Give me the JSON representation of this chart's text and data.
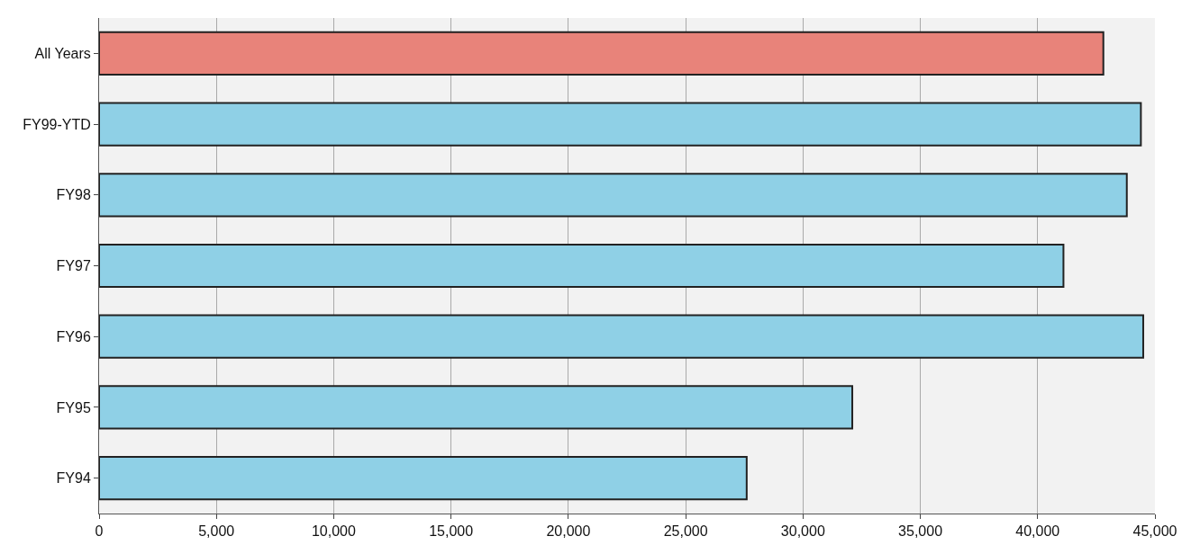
{
  "chart_data": {
    "type": "bar",
    "orientation": "horizontal",
    "categories": [
      "All Years",
      "FY99-YTD",
      "FY98",
      "FY97",
      "FY96",
      "FY95",
      "FY94"
    ],
    "values": [
      42800,
      44400,
      43800,
      41100,
      44500,
      32100,
      27600
    ],
    "colors": [
      "#e8837a",
      "#8fd0e6",
      "#8fd0e6",
      "#8fd0e6",
      "#8fd0e6",
      "#8fd0e6",
      "#8fd0e6"
    ],
    "xlim": [
      0,
      45000
    ],
    "xticks": [
      {
        "value": 0,
        "label": "0"
      },
      {
        "value": 5000,
        "label": "5,000"
      },
      {
        "value": 10000,
        "label": "10,000"
      },
      {
        "value": 15000,
        "label": "15,000"
      },
      {
        "value": 20000,
        "label": "20,000"
      },
      {
        "value": 25000,
        "label": "25,000"
      },
      {
        "value": 30000,
        "label": "30,000"
      },
      {
        "value": 35000,
        "label": "35,000"
      },
      {
        "value": 40000,
        "label": "40,000"
      },
      {
        "value": 45000,
        "label": "45,000"
      }
    ],
    "grid": "x"
  }
}
